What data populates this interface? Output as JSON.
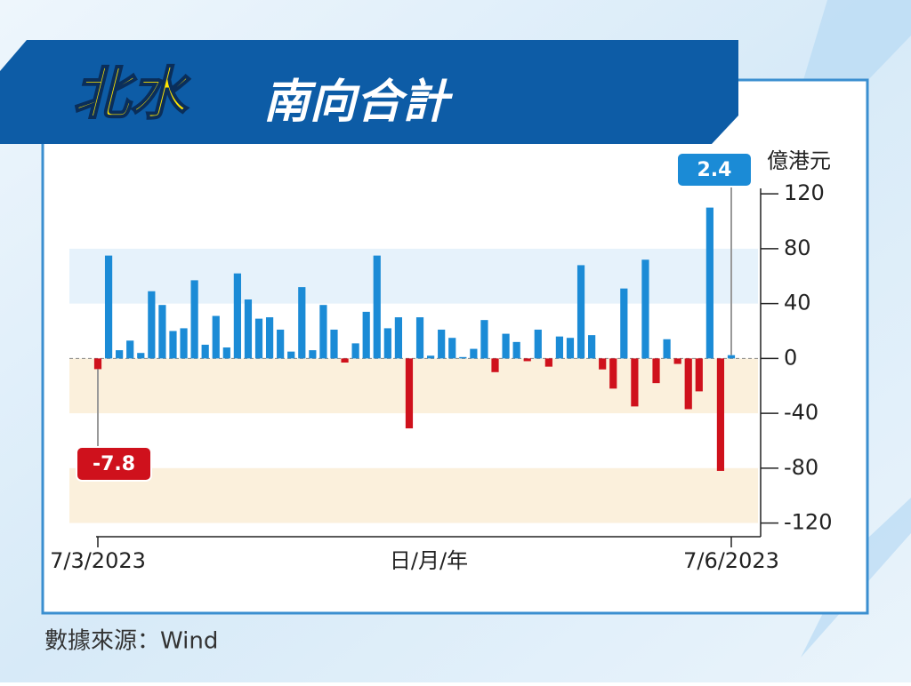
{
  "chart_data": {
    "type": "bar",
    "title": [
      "北水",
      "南向合計"
    ],
    "y_axis_label": "億港元",
    "x_axis_label": "日/月/年",
    "source": "數據來源：Wind",
    "categories": [
      "7/3/2023",
      null,
      null,
      null,
      null,
      null,
      null,
      null,
      null,
      null,
      null,
      null,
      null,
      null,
      null,
      null,
      null,
      null,
      null,
      null,
      null,
      null,
      null,
      null,
      null,
      null,
      null,
      null,
      null,
      null,
      null,
      null,
      null,
      null,
      null,
      null,
      null,
      null,
      null,
      null,
      null,
      null,
      null,
      null,
      null,
      null,
      null,
      null,
      null,
      null,
      null,
      null,
      null,
      null,
      null,
      null,
      null,
      null,
      null,
      "7/6/2023"
    ],
    "values": [
      -7.8,
      75,
      6,
      13,
      4,
      49,
      39,
      20,
      22,
      57,
      10,
      31,
      8,
      62,
      43,
      29,
      30,
      21,
      5,
      52,
      6,
      39,
      21,
      -3,
      11,
      34,
      75,
      22,
      30,
      -51,
      30,
      2,
      21,
      15,
      1,
      7,
      28,
      -10,
      18,
      12,
      -2,
      21,
      -6,
      16,
      15,
      68,
      17,
      -8,
      -22,
      51,
      -35,
      72,
      -18,
      14,
      -4,
      -37,
      -24,
      110,
      -82,
      2.4
    ],
    "positive_color": "#1b8bd6",
    "negative_color": "#cf111c",
    "ylim": [
      -130,
      124
    ],
    "yticks": [
      120,
      80,
      40,
      0,
      -40,
      -80,
      -120
    ]
  }
}
